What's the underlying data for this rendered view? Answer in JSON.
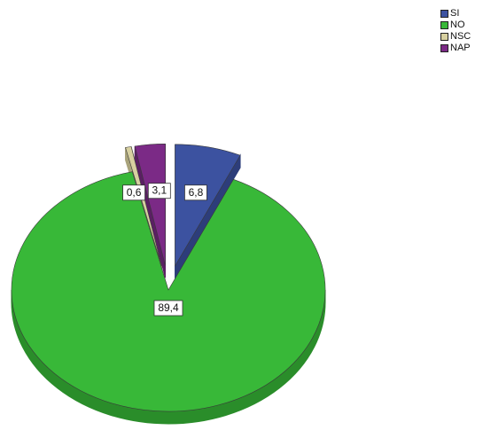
{
  "chart_data": {
    "type": "pie",
    "categories": [
      "SI",
      "NO",
      "NSC",
      "NAP"
    ],
    "values": [
      6.8,
      89.4,
      0.6,
      3.1
    ],
    "data_labels": [
      "6,8",
      "89,4",
      "0,6",
      "3,1"
    ],
    "colors": [
      "#3c52a0",
      "#38b838",
      "#d7d0a0",
      "#7b2a86"
    ],
    "side_colors": [
      "#2d3d7a",
      "#2a8d2a",
      "#a9a37b",
      "#5a1f63"
    ],
    "exploded": [
      true,
      false,
      true,
      true
    ],
    "legend_position": "top-right"
  }
}
